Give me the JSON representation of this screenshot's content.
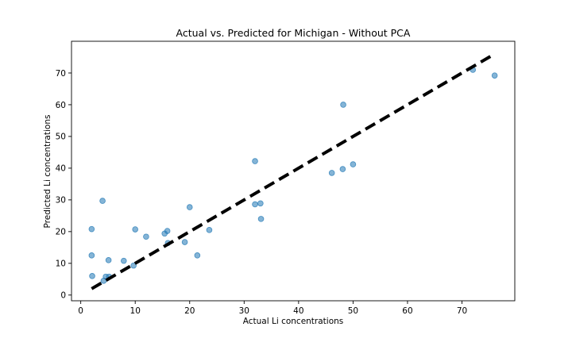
{
  "chart_data": {
    "type": "scatter",
    "title": "Actual vs. Predicted for Michigan - Without PCA",
    "xlabel": "Actual Li concentrations",
    "ylabel": "Predicted Li concentrations",
    "xlim": [
      -1.7,
      79.7
    ],
    "ylim": [
      -1.8,
      80.0
    ],
    "xticks": [
      0,
      10,
      20,
      30,
      40,
      50,
      60,
      70
    ],
    "yticks": [
      0,
      10,
      20,
      30,
      40,
      50,
      60,
      70
    ],
    "grid": false,
    "points_color": "#1f77b4",
    "points": [
      {
        "x": 2.0,
        "y": 20.8
      },
      {
        "x": 2.0,
        "y": 12.5
      },
      {
        "x": 2.1,
        "y": 6.0
      },
      {
        "x": 4.0,
        "y": 29.7
      },
      {
        "x": 4.2,
        "y": 4.5
      },
      {
        "x": 4.6,
        "y": 5.8
      },
      {
        "x": 5.1,
        "y": 11.0
      },
      {
        "x": 5.2,
        "y": 5.8
      },
      {
        "x": 7.9,
        "y": 10.8
      },
      {
        "x": 9.7,
        "y": 9.3
      },
      {
        "x": 10.0,
        "y": 20.7
      },
      {
        "x": 12.0,
        "y": 18.4
      },
      {
        "x": 15.4,
        "y": 19.4
      },
      {
        "x": 15.9,
        "y": 20.2
      },
      {
        "x": 16.0,
        "y": 16.4
      },
      {
        "x": 19.1,
        "y": 16.7
      },
      {
        "x": 20.0,
        "y": 27.7
      },
      {
        "x": 21.4,
        "y": 12.5
      },
      {
        "x": 23.6,
        "y": 20.5
      },
      {
        "x": 32.0,
        "y": 42.2
      },
      {
        "x": 32.0,
        "y": 28.6
      },
      {
        "x": 33.0,
        "y": 28.9
      },
      {
        "x": 33.1,
        "y": 24.0
      },
      {
        "x": 46.1,
        "y": 38.5
      },
      {
        "x": 48.1,
        "y": 39.7
      },
      {
        "x": 48.2,
        "y": 60.0
      },
      {
        "x": 50.0,
        "y": 41.2
      },
      {
        "x": 72.0,
        "y": 71.0
      },
      {
        "x": 76.0,
        "y": 69.2
      }
    ],
    "reference_line": {
      "x": [
        2,
        76
      ],
      "y": [
        2,
        76
      ],
      "style": "dashed",
      "color": "#000000"
    }
  }
}
